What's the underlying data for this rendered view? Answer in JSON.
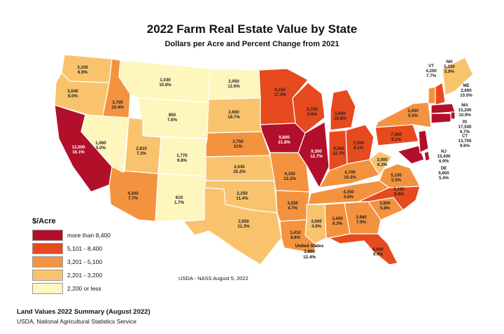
{
  "title": "2022 Farm Real Estate Value by State",
  "subtitle": "Dollars per Acre and Percent Change from 2021",
  "legend": {
    "title": "$/Acre",
    "items": [
      {
        "label": "more than 8,400",
        "color": "#b2102a"
      },
      {
        "label": "5,101 - 8,400",
        "color": "#e64a1e"
      },
      {
        "label": "3,201 - 5,100",
        "color": "#f39340"
      },
      {
        "label": "2,201 - 3,200",
        "color": "#f9c36e"
      },
      {
        "label": "2,200 or less",
        "color": "#fdf6bd"
      }
    ]
  },
  "states": [
    {
      "id": "WA",
      "value": "3,100",
      "change": "6.9%",
      "cls": 3
    },
    {
      "id": "OR",
      "value": "3,040",
      "change": "9.0%",
      "cls": 3
    },
    {
      "id": "CA",
      "value": "12,000",
      "change": "16.1%",
      "cls": 0
    },
    {
      "id": "ID",
      "value": "3,700",
      "change": "10.4%",
      "cls": 2
    },
    {
      "id": "NV",
      "value": "1,060",
      "change": "5.0%",
      "cls": 4
    },
    {
      "id": "MT",
      "value": "1,030",
      "change": "10.8%",
      "cls": 4
    },
    {
      "id": "WY",
      "value": "850",
      "change": "7.6%",
      "cls": 4
    },
    {
      "id": "UT",
      "value": "2,810",
      "change": "7.3%",
      "cls": 3
    },
    {
      "id": "CO",
      "value": "1,770",
      "change": "9.8%",
      "cls": 4
    },
    {
      "id": "AZ",
      "value": "4,200",
      "change": "7.7%",
      "cls": 2
    },
    {
      "id": "NM",
      "value": "610",
      "change": "1.7%",
      "cls": 4
    },
    {
      "id": "ND",
      "value": "2,050",
      "change": "12.6%",
      "cls": 4
    },
    {
      "id": "SD",
      "value": "2,600",
      "change": "18.7%",
      "cls": 3
    },
    {
      "id": "NE",
      "value": "3,750",
      "change": "21%",
      "cls": 2
    },
    {
      "id": "KS",
      "value": "2,630",
      "change": "25.2%",
      "cls": 3
    },
    {
      "id": "OK",
      "value": "2,250",
      "change": "11.4%",
      "cls": 3
    },
    {
      "id": "TX",
      "value": "2,650",
      "change": "11.3%",
      "cls": 3
    },
    {
      "id": "MN",
      "value": "6,150",
      "change": "17.4%",
      "cls": 1
    },
    {
      "id": "IA",
      "value": "9,800",
      "change": "21.8%",
      "cls": 0
    },
    {
      "id": "MO",
      "value": "4,150",
      "change": "12.2%",
      "cls": 2
    },
    {
      "id": "AR",
      "value": "3,550",
      "change": "4.7%",
      "cls": 2
    },
    {
      "id": "LA",
      "value": "3,410",
      "change": "9.8%",
      "cls": 2
    },
    {
      "id": "WI",
      "value": "5,700",
      "change": "9.6%",
      "cls": 1
    },
    {
      "id": "IL",
      "value": "9,300",
      "change": "12.7%",
      "cls": 0
    },
    {
      "id": "MI",
      "value": "5,650",
      "change": "10.8%",
      "cls": 1
    },
    {
      "id": "IN",
      "value": "8,000",
      "change": "12.7%",
      "cls": 1
    },
    {
      "id": "OH",
      "value": "7,200",
      "change": "9.1%",
      "cls": 1
    },
    {
      "id": "KY",
      "value": "4,700",
      "change": "10.3%",
      "cls": 2
    },
    {
      "id": "TN",
      "value": "4,350",
      "change": "5.8%",
      "cls": 2
    },
    {
      "id": "MS",
      "value": "3,000",
      "change": "4.9%",
      "cls": 3
    },
    {
      "id": "AL",
      "value": "3,400",
      "change": "6.3%",
      "cls": 2
    },
    {
      "id": "GA",
      "value": "3,960",
      "change": "7.9%",
      "cls": 2
    },
    {
      "id": "FL",
      "value": "6,600",
      "change": "9.4%",
      "cls": 1
    },
    {
      "id": "SC",
      "value": "3,800",
      "change": "5.8%",
      "cls": 2
    },
    {
      "id": "NC",
      "value": "5,150",
      "change": "8.4%",
      "cls": 1
    },
    {
      "id": "VA",
      "value": "5,100",
      "change": "5.5%",
      "cls": 2
    },
    {
      "id": "WV",
      "value": "3,000",
      "change": "6.3%",
      "cls": 3
    },
    {
      "id": "PA",
      "value": "7,300",
      "change": "8.1%",
      "cls": 1
    },
    {
      "id": "NY",
      "value": "3,450",
      "change": "5.5%",
      "cls": 2
    },
    {
      "id": "MD",
      "value": "",
      "change": "",
      "cls": 0
    },
    {
      "id": "NJ",
      "value": "15,400",
      "change": "6.9%",
      "cls": 0
    },
    {
      "id": "DE",
      "value": "9,800",
      "change": "5.4%",
      "cls": 0
    },
    {
      "id": "VT",
      "value": "4,200",
      "change": "7.7%",
      "cls": 2
    },
    {
      "id": "NH",
      "value": "5,350",
      "change": "5.9%",
      "cls": 1
    },
    {
      "id": "ME",
      "value": "2,660",
      "change": "10.0%",
      "cls": 3
    },
    {
      "id": "MA",
      "value": "15,200",
      "change": "10.9%",
      "cls": 0
    },
    {
      "id": "RI",
      "value": "17,500",
      "change": "6.7%",
      "cls": 0
    },
    {
      "id": "CT",
      "value": "13,700",
      "change": "9.6%",
      "cls": 0
    }
  ],
  "us_total": {
    "label": "United States",
    "value": "3,800",
    "change": "12.4%"
  },
  "source": "USDA - NASS August 5, 2022",
  "footer": {
    "line1": "Land Values 2022 Summary (August 2022)",
    "line2": "USDA, National Agricultural Statistics Service"
  }
}
